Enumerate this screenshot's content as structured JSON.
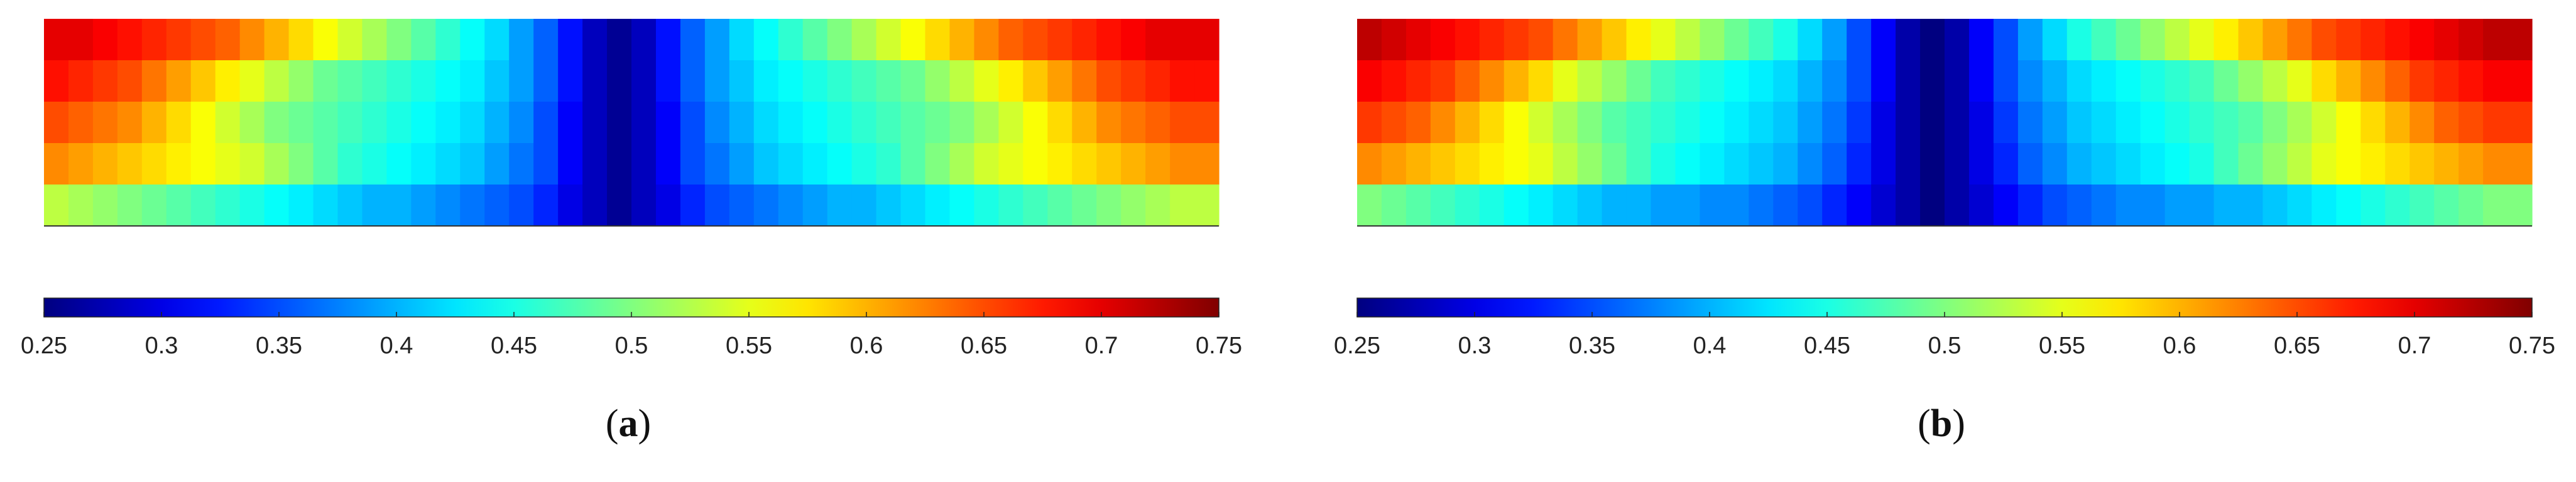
{
  "chart_data": [
    {
      "type": "heatmap",
      "panel_label": "a",
      "columns": 48,
      "rows": 5,
      "values": [
        [
          0.7,
          0.7,
          0.69,
          0.68,
          0.67,
          0.66,
          0.65,
          0.64,
          0.62,
          0.6,
          0.58,
          0.56,
          0.54,
          0.52,
          0.5,
          0.48,
          0.46,
          0.44,
          0.42,
          0.39,
          0.36,
          0.32,
          0.28,
          0.26,
          0.28,
          0.32,
          0.36,
          0.39,
          0.42,
          0.44,
          0.46,
          0.48,
          0.5,
          0.52,
          0.54,
          0.56,
          0.58,
          0.6,
          0.62,
          0.64,
          0.65,
          0.66,
          0.67,
          0.68,
          0.69,
          0.7,
          0.7,
          0.7
        ],
        [
          0.68,
          0.67,
          0.66,
          0.65,
          0.63,
          0.61,
          0.59,
          0.57,
          0.55,
          0.53,
          0.51,
          0.49,
          0.48,
          0.47,
          0.46,
          0.45,
          0.44,
          0.43,
          0.41,
          0.39,
          0.36,
          0.32,
          0.28,
          0.26,
          0.28,
          0.32,
          0.36,
          0.39,
          0.41,
          0.43,
          0.44,
          0.45,
          0.46,
          0.47,
          0.48,
          0.49,
          0.51,
          0.53,
          0.55,
          0.57,
          0.59,
          0.61,
          0.63,
          0.65,
          0.66,
          0.67,
          0.68,
          0.68
        ],
        [
          0.65,
          0.64,
          0.63,
          0.62,
          0.6,
          0.58,
          0.56,
          0.54,
          0.52,
          0.5,
          0.49,
          0.48,
          0.47,
          0.46,
          0.45,
          0.44,
          0.43,
          0.42,
          0.4,
          0.38,
          0.35,
          0.31,
          0.28,
          0.26,
          0.28,
          0.31,
          0.35,
          0.38,
          0.4,
          0.42,
          0.43,
          0.44,
          0.45,
          0.46,
          0.47,
          0.48,
          0.49,
          0.5,
          0.52,
          0.54,
          0.56,
          0.58,
          0.6,
          0.62,
          0.63,
          0.64,
          0.65,
          0.65
        ],
        [
          0.62,
          0.61,
          0.6,
          0.59,
          0.58,
          0.57,
          0.56,
          0.55,
          0.54,
          0.52,
          0.5,
          0.48,
          0.46,
          0.45,
          0.44,
          0.43,
          0.42,
          0.41,
          0.39,
          0.37,
          0.35,
          0.31,
          0.28,
          0.26,
          0.28,
          0.31,
          0.35,
          0.37,
          0.39,
          0.41,
          0.42,
          0.43,
          0.44,
          0.45,
          0.46,
          0.48,
          0.5,
          0.52,
          0.54,
          0.55,
          0.56,
          0.57,
          0.58,
          0.59,
          0.6,
          0.61,
          0.62,
          0.62
        ],
        [
          0.53,
          0.52,
          0.51,
          0.5,
          0.49,
          0.48,
          0.47,
          0.46,
          0.45,
          0.44,
          0.43,
          0.42,
          0.41,
          0.4,
          0.4,
          0.39,
          0.38,
          0.37,
          0.36,
          0.35,
          0.33,
          0.3,
          0.28,
          0.26,
          0.28,
          0.3,
          0.33,
          0.35,
          0.36,
          0.37,
          0.38,
          0.39,
          0.4,
          0.4,
          0.41,
          0.42,
          0.43,
          0.44,
          0.45,
          0.46,
          0.47,
          0.48,
          0.49,
          0.5,
          0.51,
          0.52,
          0.53,
          0.53
        ]
      ],
      "colorbar": {
        "colormap": "jet",
        "min": 0.25,
        "max": 0.75,
        "ticks": [
          "0.25",
          "0.3",
          "0.35",
          "0.4",
          "0.45",
          "0.5",
          "0.55",
          "0.6",
          "0.65",
          "0.7",
          "0.75"
        ]
      }
    },
    {
      "type": "heatmap",
      "panel_label": "b",
      "columns": 48,
      "rows": 5,
      "values": [
        [
          0.72,
          0.71,
          0.7,
          0.69,
          0.68,
          0.67,
          0.66,
          0.65,
          0.63,
          0.61,
          0.59,
          0.57,
          0.55,
          0.53,
          0.51,
          0.49,
          0.47,
          0.45,
          0.42,
          0.39,
          0.35,
          0.31,
          0.27,
          0.25,
          0.27,
          0.31,
          0.35,
          0.39,
          0.42,
          0.45,
          0.47,
          0.49,
          0.51,
          0.53,
          0.55,
          0.57,
          0.59,
          0.61,
          0.63,
          0.65,
          0.66,
          0.67,
          0.68,
          0.69,
          0.7,
          0.71,
          0.72,
          0.72
        ],
        [
          0.69,
          0.68,
          0.67,
          0.66,
          0.64,
          0.62,
          0.6,
          0.58,
          0.55,
          0.53,
          0.51,
          0.49,
          0.47,
          0.46,
          0.45,
          0.44,
          0.43,
          0.42,
          0.4,
          0.38,
          0.35,
          0.31,
          0.27,
          0.25,
          0.27,
          0.31,
          0.35,
          0.38,
          0.4,
          0.42,
          0.43,
          0.44,
          0.45,
          0.46,
          0.47,
          0.49,
          0.51,
          0.53,
          0.55,
          0.58,
          0.6,
          0.62,
          0.64,
          0.66,
          0.67,
          0.68,
          0.69,
          0.69
        ],
        [
          0.66,
          0.65,
          0.64,
          0.62,
          0.6,
          0.58,
          0.56,
          0.54,
          0.52,
          0.5,
          0.48,
          0.47,
          0.46,
          0.45,
          0.44,
          0.43,
          0.42,
          0.41,
          0.39,
          0.37,
          0.34,
          0.3,
          0.27,
          0.25,
          0.27,
          0.3,
          0.34,
          0.37,
          0.39,
          0.41,
          0.42,
          0.43,
          0.44,
          0.45,
          0.46,
          0.47,
          0.48,
          0.5,
          0.52,
          0.54,
          0.56,
          0.58,
          0.6,
          0.62,
          0.64,
          0.65,
          0.66,
          0.66
        ],
        [
          0.62,
          0.61,
          0.6,
          0.59,
          0.58,
          0.57,
          0.56,
          0.55,
          0.53,
          0.51,
          0.49,
          0.47,
          0.45,
          0.44,
          0.43,
          0.42,
          0.41,
          0.4,
          0.38,
          0.36,
          0.33,
          0.3,
          0.27,
          0.25,
          0.27,
          0.3,
          0.33,
          0.36,
          0.38,
          0.4,
          0.41,
          0.42,
          0.43,
          0.44,
          0.45,
          0.47,
          0.49,
          0.51,
          0.53,
          0.55,
          0.56,
          0.57,
          0.58,
          0.59,
          0.6,
          0.61,
          0.62,
          0.62
        ],
        [
          0.5,
          0.49,
          0.48,
          0.47,
          0.46,
          0.45,
          0.44,
          0.43,
          0.42,
          0.41,
          0.4,
          0.4,
          0.39,
          0.39,
          0.38,
          0.38,
          0.37,
          0.36,
          0.35,
          0.33,
          0.31,
          0.29,
          0.27,
          0.25,
          0.27,
          0.29,
          0.31,
          0.33,
          0.35,
          0.36,
          0.37,
          0.38,
          0.38,
          0.39,
          0.39,
          0.4,
          0.4,
          0.41,
          0.42,
          0.43,
          0.44,
          0.45,
          0.46,
          0.47,
          0.48,
          0.49,
          0.5,
          0.5
        ]
      ],
      "colorbar": {
        "colormap": "jet",
        "min": 0.25,
        "max": 0.75,
        "ticks": [
          "0.25",
          "0.3",
          "0.35",
          "0.4",
          "0.45",
          "0.5",
          "0.55",
          "0.6",
          "0.65",
          "0.7",
          "0.75"
        ]
      }
    }
  ]
}
